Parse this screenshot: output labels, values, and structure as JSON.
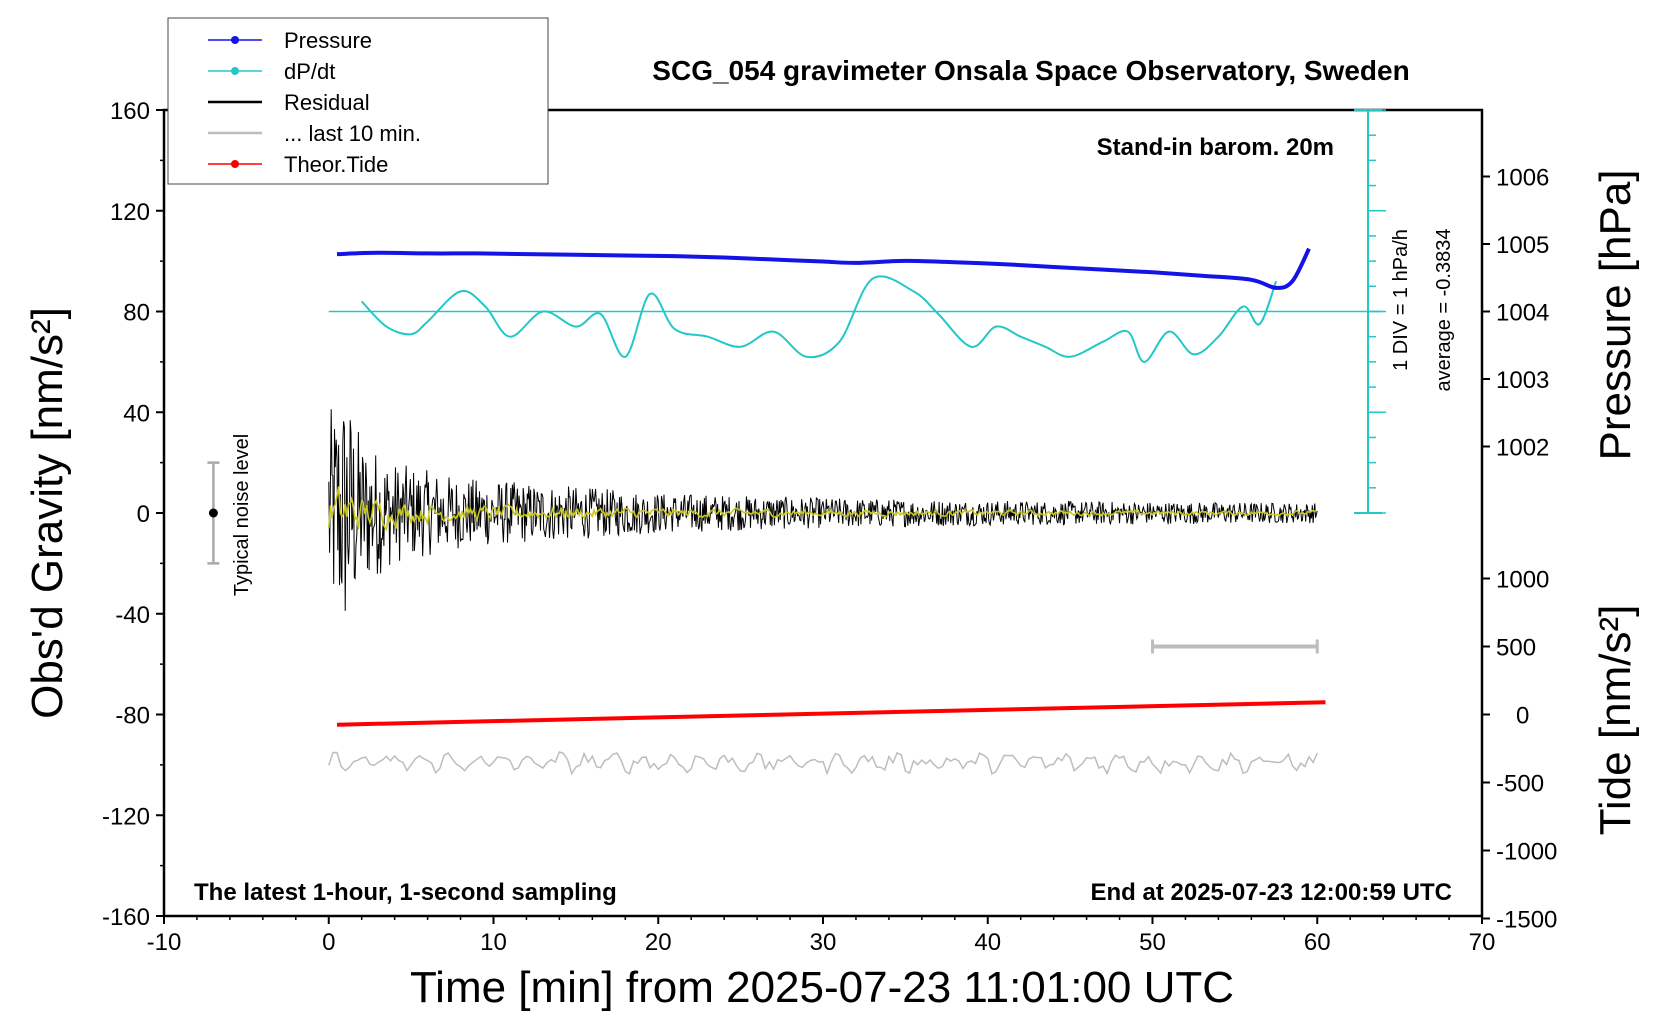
{
  "chart_data": {
    "type": "line",
    "title": "SCG_054 gravimeter Onsala Space Observatory, Sweden",
    "xlabel": "Time [min] from 2025-07-23 11:01:00 UTC",
    "ylabel": "Obs'd Gravity [nm/s²]",
    "y2label": "Pressure [hPa]",
    "y3label": "Tide [nm/s²]",
    "xlim": [
      -10,
      70
    ],
    "ylim": [
      -160,
      160
    ],
    "x_ticks": [
      "-10",
      "0",
      "10",
      "20",
      "30",
      "40",
      "50",
      "60",
      "70"
    ],
    "y_ticks": [
      "160",
      "120",
      "80",
      "40",
      "0",
      "-40",
      "-80",
      "-120",
      "-160"
    ],
    "pressure_ticks": [
      "1006",
      "1005",
      "1004",
      "1003",
      "1002"
    ],
    "tide_ticks": [
      "1000",
      "500",
      "0",
      "-500",
      "-1000",
      "-1500"
    ],
    "grid": false,
    "legend_position": "top-left",
    "legend": [
      {
        "label": "Pressure",
        "color": "#1414e6",
        "marker": "dot"
      },
      {
        "label": "dP/dt",
        "color": "#22c8c8",
        "marker": "dot"
      },
      {
        "label": "Residual",
        "color": "#000000",
        "marker": "line"
      },
      {
        "label": "... last 10 min.",
        "color": "#bdbdbd",
        "marker": "line"
      },
      {
        "label": "Theor.Tide",
        "color": "#ff0000",
        "marker": "dot"
      }
    ],
    "annotations": {
      "stand_in": "Stand-in barom. 20m",
      "div_label": "1 DIV = 1 hPa/h",
      "average_label": "average = -0.3834",
      "noise_label": "Typical noise level",
      "bottom_left": "The latest 1-hour, 1-second sampling",
      "bottom_right": "End at 2025-07-23 12:00:59 UTC"
    },
    "series": [
      {
        "name": "Pressure",
        "axis": "pressure",
        "x": [
          0.5,
          3,
          6,
          9,
          12,
          15,
          18,
          21,
          24,
          27,
          30,
          32,
          35,
          38,
          41,
          44,
          47,
          50,
          53,
          56,
          57.5,
          58.5,
          59.5
        ],
        "values": [
          1004.85,
          1004.87,
          1004.86,
          1004.86,
          1004.85,
          1004.84,
          1004.83,
          1004.82,
          1004.8,
          1004.77,
          1004.74,
          1004.72,
          1004.75,
          1004.73,
          1004.7,
          1004.66,
          1004.62,
          1004.58,
          1004.53,
          1004.47,
          1004.35,
          1004.45,
          1004.93
        ]
      },
      {
        "name": "dP/dt",
        "axis": "gravity",
        "x": [
          2,
          3.5,
          5,
          6,
          8,
          9.5,
          11,
          13,
          15,
          16.5,
          18,
          19.5,
          21,
          23,
          25,
          27,
          29,
          31,
          33,
          35.5,
          37,
          39,
          40.5,
          42,
          43.5,
          45,
          47,
          48.5,
          49.5,
          51,
          52.5,
          54,
          55.5,
          56.5,
          57.5
        ],
        "values": [
          84,
          74,
          71,
          76,
          88,
          82,
          70,
          80,
          74,
          79,
          62,
          87,
          73,
          70,
          66,
          72,
          62,
          68,
          93,
          88,
          79,
          66,
          74,
          70,
          66,
          62,
          68,
          72,
          60,
          72,
          63,
          70,
          82,
          75,
          92
        ]
      },
      {
        "name": "Residual",
        "axis": "gravity",
        "envelope": [
          [
            0,
            40
          ],
          [
            1,
            50
          ],
          [
            2,
            30
          ],
          [
            4,
            20
          ],
          [
            8,
            14
          ],
          [
            14,
            11
          ],
          [
            20,
            8
          ],
          [
            30,
            6
          ],
          [
            40,
            5
          ],
          [
            60,
            4
          ]
        ]
      },
      {
        "name": "... last 10 min.",
        "axis": "gravity",
        "x": [
          50,
          60
        ],
        "values": [
          -53,
          -53
        ]
      },
      {
        "name": "Theor.Tide",
        "axis": "tide",
        "x": [
          0.5,
          60.5
        ],
        "values": [
          -75,
          90
        ]
      }
    ]
  }
}
